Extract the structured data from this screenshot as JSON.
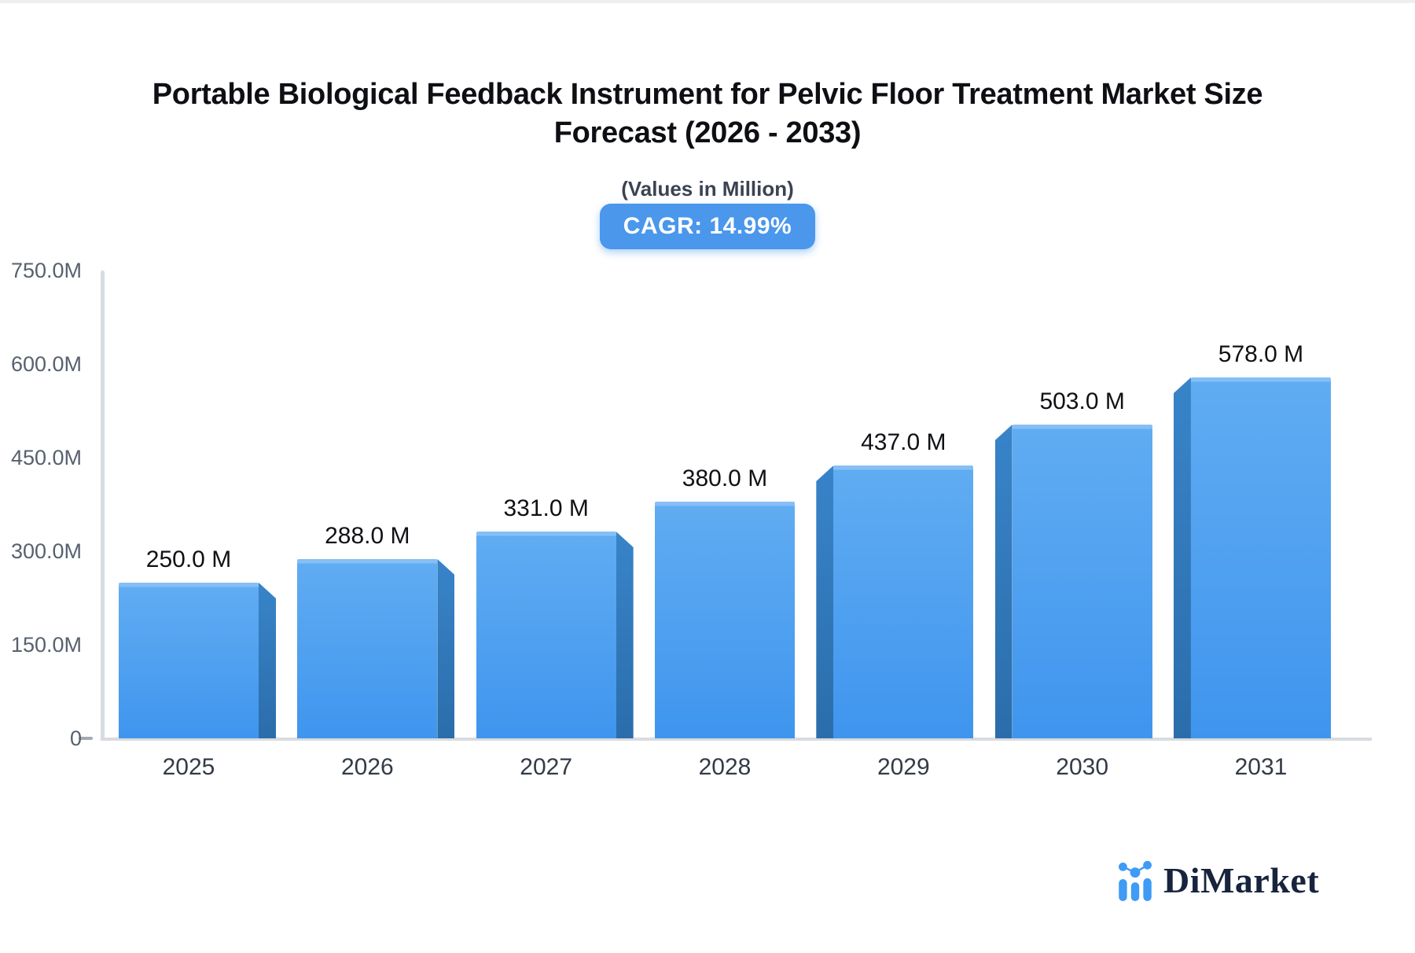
{
  "title": {
    "line1": "Portable Biological Feedback Instrument for Pelvic Floor Treatment Market Size",
    "line2": "Forecast (2026 - 2033)"
  },
  "subtitle": "(Values in Million)",
  "badge": {
    "label": "CAGR: 14.99%"
  },
  "brand": {
    "name": "DiMarket",
    "icon": "mini-bar-chart-logo-icon"
  },
  "colors": {
    "badge_bg": "#4a97ec",
    "bar_face_top": "#60acf2",
    "bar_face_bottom": "#3f95ee",
    "bar_top_highlight": "#85bff5",
    "bar_side": "#2e74b4",
    "axis_line": "#d8dbdf",
    "tick_label": "#57616e",
    "year_label": "#333b46",
    "value_label": "#0f1115",
    "brand_text": "#17243e",
    "brand_icon": "#3f9bf5"
  },
  "chart_data": {
    "type": "bar",
    "title": "Portable Biological Feedback Instrument for Pelvic Floor Treatment Market Size Forecast (2026 - 2033)",
    "subtitle": "(Values in Million)",
    "cagr_percent": 14.99,
    "categories": [
      "2025",
      "2026",
      "2027",
      "2028",
      "2029",
      "2030",
      "2031"
    ],
    "values": [
      250.0,
      288.0,
      331.0,
      380.0,
      437.0,
      503.0,
      578.0
    ],
    "value_labels": [
      "250.0 M",
      "288.0 M",
      "331.0 M",
      "380.0 M",
      "437.0 M",
      "503.0 M",
      "578.0 M"
    ],
    "unit": "Million",
    "xlabel": "",
    "ylabel": "",
    "ylim": [
      0,
      750
    ],
    "y_ticks": [
      {
        "value": 750,
        "label": "750.0M"
      },
      {
        "value": 600,
        "label": "600.0M"
      },
      {
        "value": 450,
        "label": "450.0M"
      },
      {
        "value": 300,
        "label": "300.0M"
      },
      {
        "value": 150,
        "label": "150.0M"
      },
      {
        "value": 0,
        "label": "0"
      }
    ],
    "grid": false,
    "legend": "none",
    "bar_style": "3d-perspective-single-series"
  }
}
